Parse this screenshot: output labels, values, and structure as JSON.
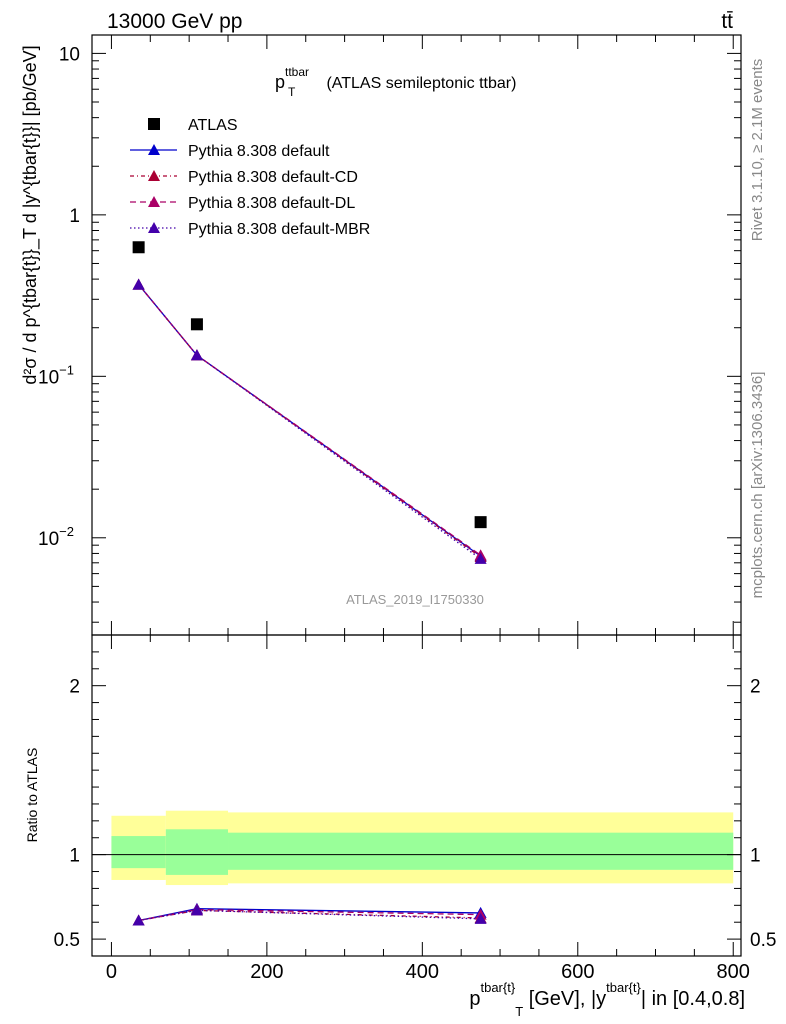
{
  "header": {
    "left": "13000 GeV pp",
    "right": "tt̄"
  },
  "side_labels": {
    "top": "Rivet 3.1.10, ≥ 2.1M events",
    "bottom": "mcplots.cern.ch [arXiv:1306.3436]"
  },
  "watermark": "ATLAS_2019_I1750330",
  "colors": {
    "data": "#000000",
    "default": "#0000cc",
    "cd": "#aa0033",
    "dl": "#aa0066",
    "mbr": "#4400aa",
    "band_outer": "#ffff99",
    "band_inner": "#99ff99"
  },
  "chart_data": [
    {
      "type": "line",
      "title_main": "p",
      "title_sup": "ttbar",
      "title_sub": "T",
      "title_rest": " (ATLAS semileptonic ttbar)",
      "ylabel": "d²σ / d p^{tbar{t}}_T d |y^{tbar{t}}| [pb/GeV]",
      "yscale": "log",
      "ylim": [
        0.0025,
        13
      ],
      "xlim": [
        -25,
        810
      ],
      "yticks": [
        {
          "v": 10,
          "label": "10"
        },
        {
          "v": 1,
          "label": "1"
        },
        {
          "v": 0.1,
          "label": "10",
          "sup": "−1"
        },
        {
          "v": 0.01,
          "label": "10",
          "sup": "−2"
        }
      ],
      "legend_position": "top-left",
      "series": [
        {
          "name": "ATLAS",
          "key": "data",
          "x": [
            35,
            110,
            475
          ],
          "y": [
            0.63,
            0.21,
            0.0125
          ]
        },
        {
          "name": "Pythia 8.308 default",
          "key": "default",
          "x": [
            35,
            110,
            475
          ],
          "y": [
            0.37,
            0.135,
            0.0077
          ]
        },
        {
          "name": "Pythia 8.308 default-CD",
          "key": "cd",
          "x": [
            35,
            110,
            475
          ],
          "y": [
            0.37,
            0.135,
            0.0076
          ]
        },
        {
          "name": "Pythia 8.308 default-DL",
          "key": "dl",
          "x": [
            35,
            110,
            475
          ],
          "y": [
            0.37,
            0.135,
            0.0078
          ]
        },
        {
          "name": "Pythia 8.308 default-MBR",
          "key": "mbr",
          "x": [
            35,
            110,
            475
          ],
          "y": [
            0.37,
            0.135,
            0.0074
          ]
        }
      ]
    },
    {
      "type": "line",
      "ylabel": "Ratio to ATLAS",
      "xlabel_main": "p",
      "xlabel_sup": "tbar{t}",
      "xlabel_sub": "T",
      "xlabel_mid": " [GeV], |y",
      "xlabel_sup2": "tbar{t}",
      "xlabel_rest": "| in [0.4,0.8]",
      "ylim": [
        0.4,
        2.3
      ],
      "xlim": [
        -25,
        810
      ],
      "yticks": [
        {
          "v": 0.5,
          "label": "0.5"
        },
        {
          "v": 1,
          "label": "1"
        },
        {
          "v": 2,
          "label": "2"
        }
      ],
      "xticks": [
        {
          "v": 0,
          "label": "0"
        },
        {
          "v": 200,
          "label": "200"
        },
        {
          "v": 400,
          "label": "400"
        },
        {
          "v": 600,
          "label": "600"
        },
        {
          "v": 800,
          "label": "800"
        }
      ],
      "bands": [
        {
          "x0": 0,
          "x1": 70,
          "outer": [
            0.85,
            1.23
          ],
          "inner": [
            0.92,
            1.11
          ]
        },
        {
          "x0": 70,
          "x1": 150,
          "outer": [
            0.82,
            1.26
          ],
          "inner": [
            0.88,
            1.15
          ]
        },
        {
          "x0": 150,
          "x1": 800,
          "outer": [
            0.83,
            1.25
          ],
          "inner": [
            0.91,
            1.13
          ]
        }
      ],
      "series": [
        {
          "name": "Pythia 8.308 default",
          "key": "default",
          "x": [
            35,
            110,
            475
          ],
          "y": [
            0.61,
            0.68,
            0.655
          ]
        },
        {
          "name": "Pythia 8.308 default-CD",
          "key": "cd",
          "x": [
            35,
            110,
            475
          ],
          "y": [
            0.61,
            0.67,
            0.625
          ]
        },
        {
          "name": "Pythia 8.308 default-DL",
          "key": "dl",
          "x": [
            35,
            110,
            475
          ],
          "y": [
            0.61,
            0.675,
            0.645
          ]
        },
        {
          "name": "Pythia 8.308 default-MBR",
          "key": "mbr",
          "x": [
            35,
            110,
            475
          ],
          "y": [
            0.61,
            0.67,
            0.62
          ]
        }
      ]
    }
  ]
}
